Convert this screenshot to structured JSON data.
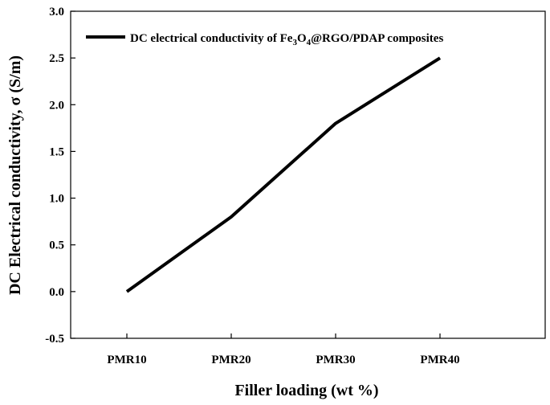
{
  "chart_data": {
    "type": "line",
    "xlabel": "Filler loading (wt %)",
    "ylabel": "DC Electrical conductivity, σ (S/m)",
    "categories": [
      "PMR10",
      "PMR20",
      "PMR30",
      "PMR40"
    ],
    "series": [
      {
        "name": "DC electrical conductivity of Fe3O4@RGO/PDAP composites",
        "legend_parts": {
          "prefix": "DC electrical conductivity of Fe",
          "sub1": "3",
          "mid": "O",
          "sub2": "4",
          "suffix": "@RGO/PDAP composites"
        },
        "values": [
          0.0,
          0.8,
          1.8,
          2.5
        ],
        "color": "#000000"
      }
    ],
    "ylim": [
      -0.5,
      3.0
    ],
    "yticks": [
      "-0.5",
      "0.0",
      "0.5",
      "1.0",
      "1.5",
      "2.0",
      "2.5",
      "3.0"
    ],
    "grid": false,
    "legend_position": "top-right"
  }
}
